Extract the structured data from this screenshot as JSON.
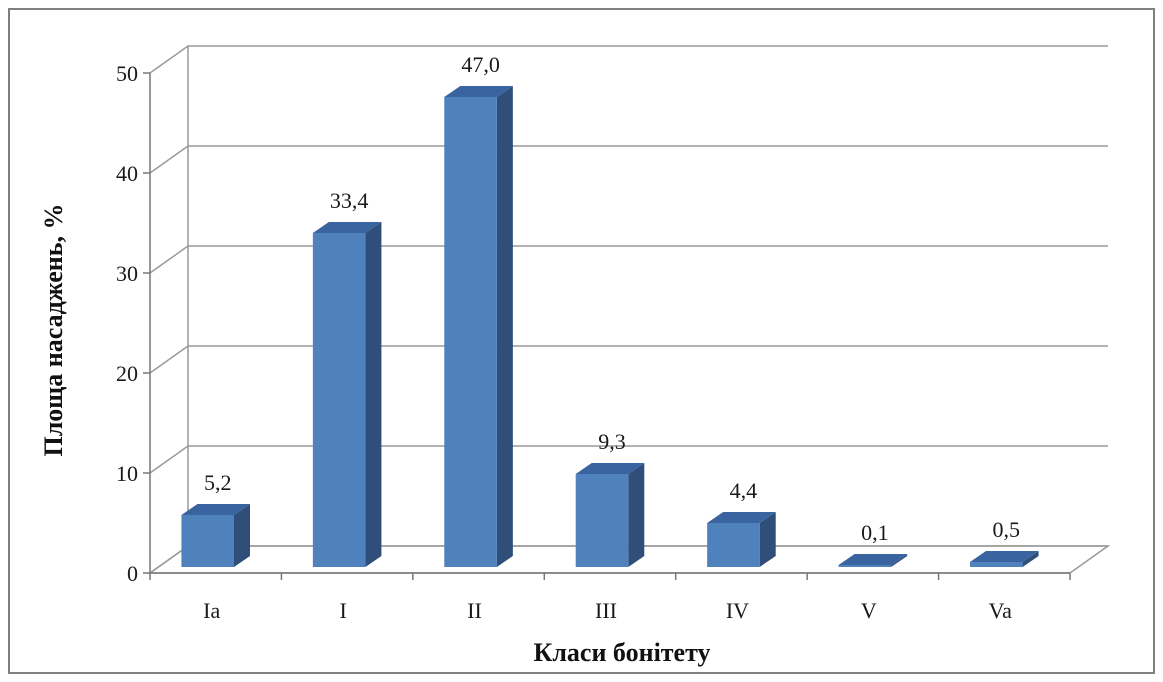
{
  "chart_data": {
    "type": "bar",
    "style": "3d-column",
    "categories": [
      "Ia",
      "I",
      "II",
      "III",
      "IV",
      "V",
      "Va"
    ],
    "values": [
      5.2,
      33.4,
      47.0,
      9.3,
      4.4,
      0.1,
      0.5
    ],
    "value_labels": [
      "5,2",
      "33,4",
      "47,0",
      "9,3",
      "4,4",
      "0,1",
      "0,5"
    ],
    "xlabel": "Класи бонітету",
    "ylabel": "Площа насаджень, %",
    "ylim": [
      0,
      50
    ],
    "yticks": [
      0,
      10,
      20,
      30,
      40,
      50
    ],
    "grid": true,
    "legend": "none",
    "colors": {
      "bar_front": "#4f81bd",
      "bar_side": "#2f4f7a",
      "bar_top": "#3a64a0",
      "grid": "#9a9a9a"
    }
  }
}
